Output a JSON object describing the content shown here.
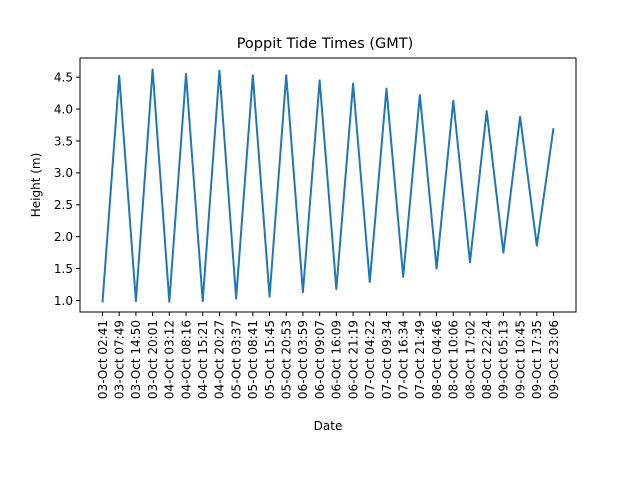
{
  "chart_data": {
    "type": "line",
    "title": "Poppit Tide Times (GMT)",
    "xlabel": "Date",
    "ylabel": "Height (m)",
    "ylim": [
      0.82,
      4.8
    ],
    "yticks": [
      "1.0",
      "1.5",
      "2.0",
      "2.5",
      "3.0",
      "3.5",
      "4.0",
      "4.5"
    ],
    "ytick_values": [
      1.0,
      1.5,
      2.0,
      2.5,
      3.0,
      3.5,
      4.0,
      4.5
    ],
    "grid": false,
    "line_color": "#1f77b4",
    "categories": [
      "03-Oct 02:41",
      "03-Oct 07:49",
      "03-Oct 14:50",
      "03-Oct 20:01",
      "04-Oct 03:12",
      "04-Oct 08:16",
      "04-Oct 15:21",
      "04-Oct 20:27",
      "05-Oct 03:37",
      "05-Oct 08:41",
      "05-Oct 15:45",
      "05-Oct 20:53",
      "06-Oct 03:59",
      "06-Oct 09:07",
      "06-Oct 16:09",
      "06-Oct 21:19",
      "07-Oct 04:22",
      "07-Oct 09:34",
      "07-Oct 16:34",
      "07-Oct 21:49",
      "08-Oct 04:46",
      "08-Oct 10:06",
      "08-Oct 17:02",
      "08-Oct 22:24",
      "09-Oct 05:13",
      "09-Oct 10:45",
      "09-Oct 17:35",
      "09-Oct 23:06"
    ],
    "series": [
      {
        "values": [
          0.97,
          4.52,
          0.99,
          4.62,
          0.98,
          4.55,
          0.99,
          4.6,
          1.03,
          4.53,
          1.06,
          4.53,
          1.13,
          4.45,
          1.18,
          4.4,
          1.29,
          4.32,
          1.37,
          4.22,
          1.5,
          4.13,
          1.6,
          3.97,
          1.75,
          3.88,
          1.86,
          3.7
        ]
      }
    ]
  }
}
